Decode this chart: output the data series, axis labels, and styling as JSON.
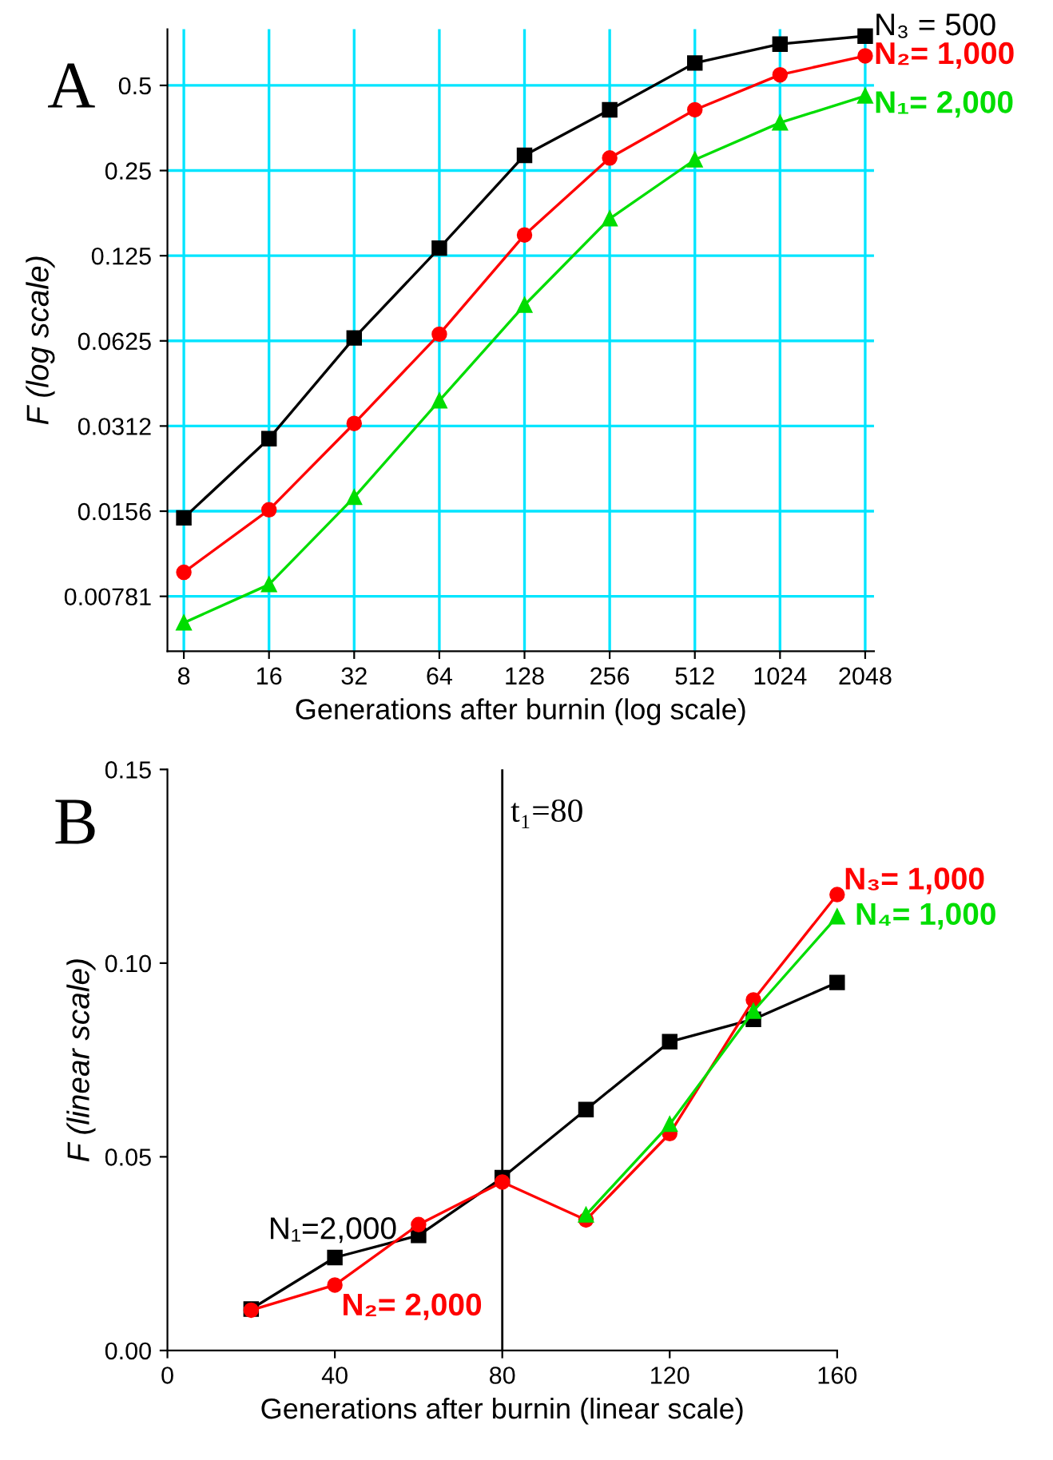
{
  "chart_data": [
    {
      "type": "line",
      "title": "A",
      "xlabel": "Generations after burnin (log scale)",
      "ylabel": "F (log scale)",
      "log": "xy",
      "grid": true,
      "line_style": "solid",
      "legend": false,
      "x": [
        8,
        16,
        32,
        64,
        128,
        256,
        512,
        1024,
        2048
      ],
      "xlim": [
        7,
        2200
      ],
      "ylim": [
        0.005,
        0.79
      ],
      "xticks": [
        8,
        16,
        32,
        64,
        128,
        256,
        512,
        1024,
        2048
      ],
      "yticks": [
        {
          "value": 0.0078125,
          "label": "0.00781"
        },
        {
          "value": 0.015625,
          "label": "0.0156"
        },
        {
          "value": 0.03125,
          "label": "0.0312"
        },
        0.0625,
        0.125,
        0.25,
        0.5
      ],
      "series": [
        {
          "name": "N₃ = 500",
          "color": "#000000",
          "marker": "square",
          "values": [
            0.0148,
            0.0282,
            0.064,
            0.133,
            0.283,
            0.41,
            0.6,
            0.7,
            0.747
          ]
        },
        {
          "name": "N₂= 1,000",
          "color": "#ff0000",
          "marker": "circle",
          "values": [
            0.0095,
            0.0158,
            0.0319,
            0.066,
            0.148,
            0.277,
            0.41,
            0.545,
            0.636
          ]
        },
        {
          "name": "N₁= 2,000",
          "color": "#00dd00",
          "marker": "triangle",
          "values": [
            0.0063,
            0.0086,
            0.0175,
            0.0384,
            0.0836,
            0.169,
            0.273,
            0.369,
            0.459
          ]
        }
      ]
    },
    {
      "type": "line",
      "title": "B",
      "xlabel": "Generations after burnin (linear scale)",
      "ylabel": "F (linear scale)",
      "grid": false,
      "legend": false,
      "line_style": "solid",
      "xlim": [
        0,
        160
      ],
      "ylim": [
        0,
        0.15
      ],
      "xticks": [
        0,
        40,
        80,
        120,
        160
      ],
      "yticks": [
        {
          "value": 0,
          "label": "0.00"
        },
        {
          "value": 0.05,
          "label": "0.05"
        },
        {
          "value": 0.1,
          "label": "0.10"
        },
        {
          "value": 0.15,
          "label": "0.15"
        }
      ],
      "ref_lines": [
        {
          "axis": "x",
          "value": 80,
          "label": "t₁=80",
          "color": "#000000"
        }
      ],
      "annotations": [
        {
          "text": "N₂= 2,000",
          "x": 40,
          "y": 0.0169
        },
        {
          "text": "N₃= 1,000",
          "x": 160,
          "y": 0.1177
        }
      ],
      "series": [
        {
          "name": "N₁=2,000",
          "color": "#000000",
          "marker": "square",
          "x": [
            20,
            40,
            60,
            80,
            100,
            120,
            140,
            160
          ],
          "values": [
            0.0107,
            0.024,
            0.0297,
            0.0446,
            0.0622,
            0.0797,
            0.0855,
            0.095
          ]
        },
        {
          "color": "#ff0000",
          "marker": "circle",
          "x": [
            20,
            40,
            60,
            80,
            100,
            120,
            140,
            160
          ],
          "values": [
            0.0104,
            0.0169,
            0.0325,
            0.0435,
            0.0337,
            0.056,
            0.0905,
            0.1177
          ]
        },
        {
          "name": "N₄= 1,000",
          "color": "#00dd00",
          "marker": "triangle",
          "x": [
            100,
            120,
            140,
            160
          ],
          "values": [
            0.035,
            0.0584,
            0.0876,
            0.112
          ]
        }
      ]
    }
  ]
}
